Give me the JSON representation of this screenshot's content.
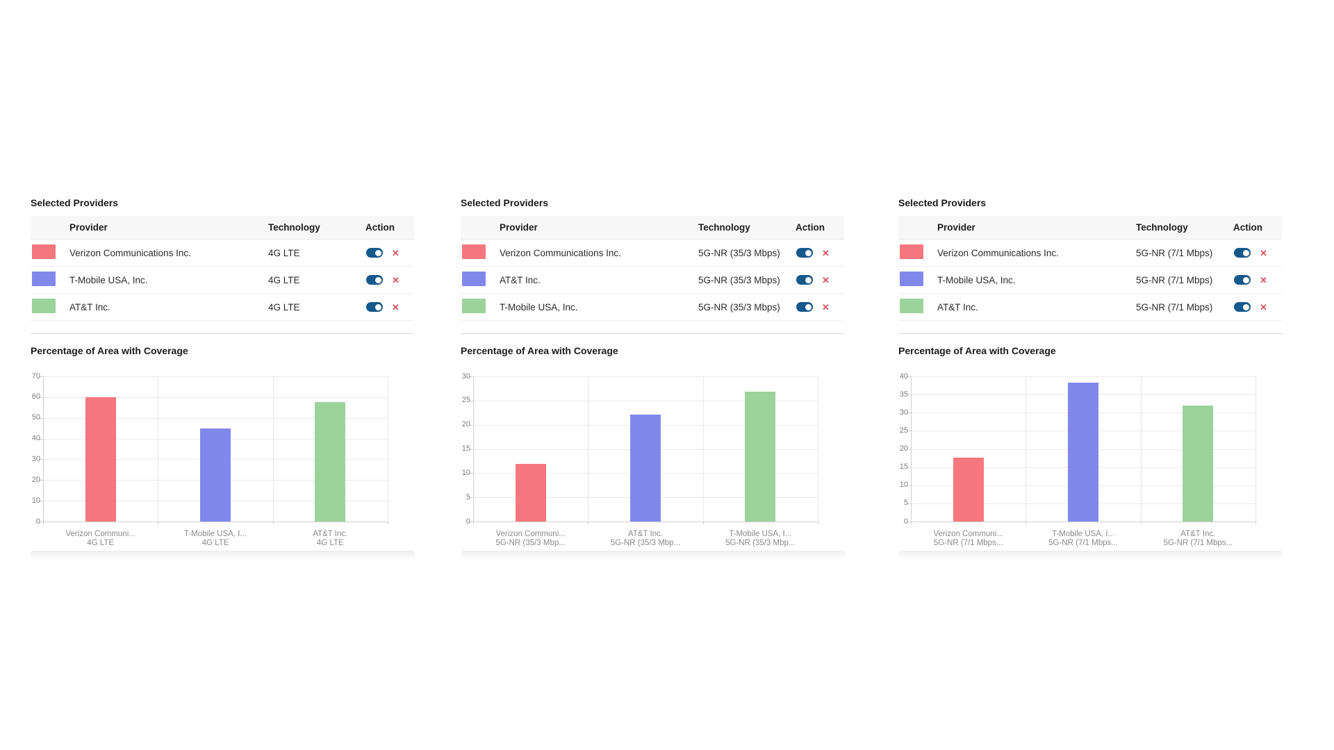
{
  "colors": {
    "provider_red": "#F7777E",
    "provider_blue": "#8188EC",
    "provider_green": "#9CD39A",
    "toggle_on_blue": "#15588C",
    "remove_red": "#D8505F"
  },
  "icons": {
    "remove": "✕",
    "toggle": "toggle-on"
  },
  "panels": [
    {
      "table_title": "Selected Providers",
      "columns": {
        "provider": "Provider",
        "technology": "Technology",
        "action": "Action"
      },
      "rows": [
        {
          "color": "#F7777E",
          "provider": "Verizon Communications Inc.",
          "technology": "4G LTE",
          "enabled": true
        },
        {
          "color": "#8188EC",
          "provider": "T-Mobile USA, Inc.",
          "technology": "4G LTE",
          "enabled": true
        },
        {
          "color": "#9CD39A",
          "provider": "AT&T Inc.",
          "technology": "4G LTE",
          "enabled": true
        }
      ],
      "chart_title": "Percentage of Area with Coverage"
    },
    {
      "table_title": "Selected Providers",
      "columns": {
        "provider": "Provider",
        "technology": "Technology",
        "action": "Action"
      },
      "rows": [
        {
          "color": "#F7777E",
          "provider": "Verizon Communications Inc.",
          "technology": "5G-NR (35/3 Mbps)",
          "enabled": true
        },
        {
          "color": "#8188EC",
          "provider": "AT&T Inc.",
          "technology": "5G-NR (35/3 Mbps)",
          "enabled": true
        },
        {
          "color": "#9CD39A",
          "provider": "T-Mobile USA, Inc.",
          "technology": "5G-NR (35/3 Mbps)",
          "enabled": true
        }
      ],
      "chart_title": "Percentage of Area with Coverage"
    },
    {
      "table_title": "Selected Providers",
      "columns": {
        "provider": "Provider",
        "technology": "Technology",
        "action": "Action"
      },
      "rows": [
        {
          "color": "#F7777E",
          "provider": "Verizon Communications Inc.",
          "technology": "5G-NR (7/1 Mbps)",
          "enabled": true
        },
        {
          "color": "#8188EC",
          "provider": "T-Mobile USA, Inc.",
          "technology": "5G-NR (7/1 Mbps)",
          "enabled": true
        },
        {
          "color": "#9CD39A",
          "provider": "AT&T Inc.",
          "technology": "5G-NR (7/1 Mbps)",
          "enabled": true
        }
      ],
      "chart_title": "Percentage of Area with Coverage"
    }
  ],
  "chart_data": [
    {
      "type": "bar",
      "title": "Percentage of Area with Coverage",
      "xlabel": "",
      "ylabel": "",
      "categories": [
        [
          "Verizon Communi...",
          "4G LTE"
        ],
        [
          "T-Mobile USA, I...",
          "4G LTE"
        ],
        [
          "AT&T Inc.",
          "4G LTE"
        ]
      ],
      "values": [
        60,
        45,
        57.5
      ],
      "bar_colors": [
        "#F7777E",
        "#8188EC",
        "#9CD39A"
      ],
      "ylim": [
        0,
        70
      ],
      "ytick_step": 10,
      "grid": true,
      "legend": false
    },
    {
      "type": "bar",
      "title": "Percentage of Area with Coverage",
      "xlabel": "",
      "ylabel": "",
      "categories": [
        [
          "Verizon Communi...",
          "5G-NR (35/3 Mbp..."
        ],
        [
          "AT&T Inc.",
          "5G-NR (35/3 Mbp..."
        ],
        [
          "T-Mobile USA, I...",
          "5G-NR (35/3 Mbp..."
        ]
      ],
      "values": [
        11.9,
        22.1,
        26.8
      ],
      "bar_colors": [
        "#F7777E",
        "#8188EC",
        "#9CD39A"
      ],
      "ylim": [
        0,
        30
      ],
      "ytick_step": 5,
      "grid": true,
      "legend": false
    },
    {
      "type": "bar",
      "title": "Percentage of Area with Coverage",
      "xlabel": "",
      "ylabel": "",
      "categories": [
        [
          "Verizon Communi...",
          "5G-NR (7/1 Mbps..."
        ],
        [
          "T-Mobile USA, I...",
          "5G-NR (7/1 Mbps..."
        ],
        [
          "AT&T Inc.",
          "5G-NR (7/1 Mbps..."
        ]
      ],
      "values": [
        17.7,
        38.3,
        32
      ],
      "bar_colors": [
        "#F7777E",
        "#8188EC",
        "#9CD39A"
      ],
      "ylim": [
        0,
        40
      ],
      "ytick_step": 5,
      "grid": true,
      "legend": false
    }
  ]
}
